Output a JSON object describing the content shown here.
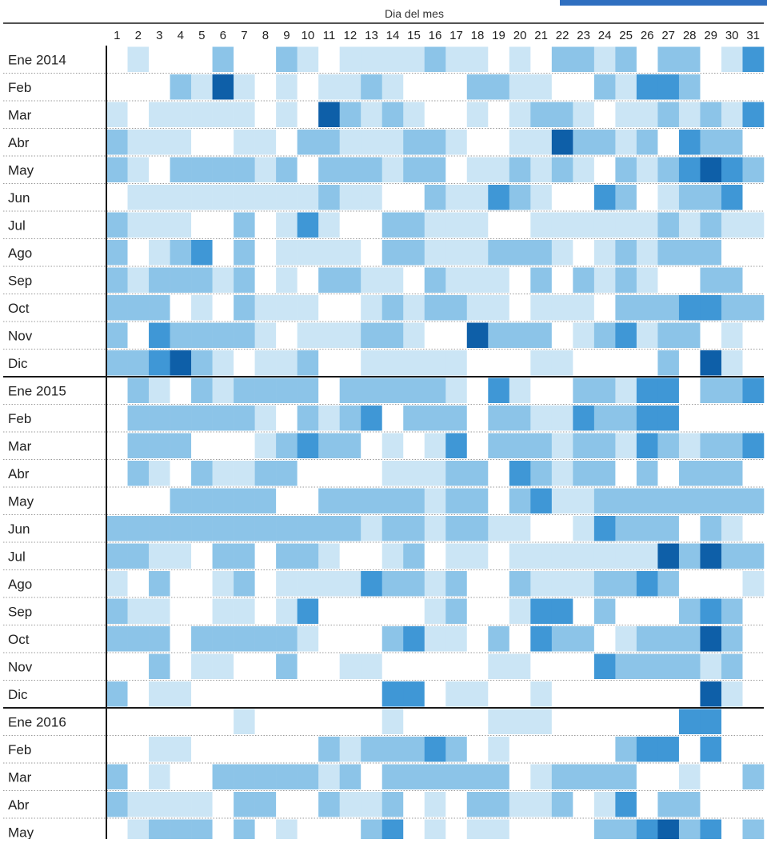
{
  "chart_data": {
    "type": "heatmap",
    "xlabel": "Dia del mes",
    "ylabel": "",
    "x": [
      "1",
      "2",
      "3",
      "4",
      "5",
      "6",
      "7",
      "8",
      "9",
      "10",
      "11",
      "12",
      "13",
      "14",
      "15",
      "16",
      "17",
      "18",
      "19",
      "20",
      "21",
      "22",
      "23",
      "24",
      "25",
      "26",
      "27",
      "28",
      "29",
      "30",
      "31"
    ],
    "y": [
      "Ene 2014",
      "Feb",
      "Mar",
      "Abr",
      "May",
      "Jun",
      "Jul",
      "Ago",
      "Sep",
      "Oct",
      "Nov",
      "Dic",
      "Ene 2015",
      "Feb",
      "Mar",
      "Abr",
      "May",
      "Jun",
      "Jul",
      "Ago",
      "Sep",
      "Oct",
      "Nov",
      "Dic",
      "Ene 2016",
      "Feb",
      "Mar",
      "Abr",
      "May"
    ],
    "year_start_rows": [
      0,
      12,
      24
    ],
    "value_range": [
      0,
      4
    ],
    "values": [
      [
        0,
        1,
        0,
        0,
        0,
        2,
        0,
        0,
        2,
        1,
        0,
        1,
        1,
        1,
        1,
        2,
        1,
        1,
        0,
        1,
        0,
        2,
        2,
        1,
        2,
        0,
        2,
        2,
        0,
        1,
        3
      ],
      [
        0,
        0,
        0,
        2,
        1,
        4,
        1,
        0,
        1,
        0,
        1,
        1,
        2,
        1,
        0,
        0,
        0,
        2,
        2,
        1,
        1,
        0,
        0,
        2,
        1,
        3,
        3,
        2,
        0,
        0,
        0
      ],
      [
        1,
        0,
        1,
        1,
        1,
        1,
        1,
        0,
        1,
        0,
        4,
        2,
        1,
        2,
        1,
        0,
        0,
        1,
        0,
        1,
        2,
        2,
        1,
        0,
        1,
        1,
        2,
        1,
        2,
        1,
        3
      ],
      [
        2,
        1,
        1,
        1,
        0,
        0,
        1,
        1,
        0,
        2,
        2,
        1,
        1,
        1,
        2,
        2,
        1,
        0,
        0,
        1,
        1,
        4,
        2,
        2,
        1,
        2,
        0,
        3,
        2,
        2,
        0
      ],
      [
        2,
        1,
        0,
        2,
        2,
        2,
        2,
        1,
        2,
        0,
        2,
        2,
        2,
        1,
        2,
        2,
        0,
        1,
        1,
        2,
        1,
        2,
        1,
        0,
        2,
        1,
        2,
        3,
        4,
        3,
        2
      ],
      [
        0,
        1,
        1,
        1,
        1,
        1,
        1,
        1,
        1,
        1,
        2,
        1,
        1,
        0,
        0,
        2,
        1,
        1,
        3,
        2,
        1,
        0,
        0,
        3,
        2,
        0,
        1,
        2,
        2,
        3,
        0
      ],
      [
        2,
        1,
        1,
        1,
        0,
        0,
        2,
        0,
        1,
        3,
        1,
        0,
        0,
        2,
        2,
        1,
        1,
        1,
        0,
        0,
        1,
        1,
        1,
        1,
        1,
        1,
        2,
        1,
        2,
        1,
        1
      ],
      [
        2,
        0,
        1,
        2,
        3,
        0,
        2,
        0,
        1,
        1,
        1,
        1,
        0,
        2,
        2,
        1,
        1,
        1,
        2,
        2,
        2,
        1,
        0,
        1,
        2,
        1,
        2,
        2,
        2,
        0,
        0
      ],
      [
        2,
        1,
        2,
        2,
        2,
        1,
        2,
        0,
        1,
        0,
        2,
        2,
        1,
        1,
        0,
        2,
        1,
        1,
        1,
        0,
        2,
        0,
        2,
        1,
        2,
        1,
        0,
        0,
        2,
        2,
        0
      ],
      [
        2,
        2,
        2,
        0,
        1,
        0,
        2,
        1,
        1,
        1,
        0,
        0,
        1,
        2,
        1,
        2,
        2,
        1,
        1,
        0,
        1,
        1,
        1,
        0,
        2,
        2,
        2,
        3,
        3,
        2,
        2
      ],
      [
        2,
        0,
        3,
        2,
        2,
        2,
        2,
        1,
        0,
        1,
        1,
        1,
        2,
        2,
        1,
        0,
        0,
        4,
        2,
        2,
        2,
        0,
        1,
        2,
        3,
        1,
        2,
        2,
        0,
        1,
        0
      ],
      [
        2,
        2,
        3,
        4,
        2,
        1,
        0,
        1,
        1,
        2,
        0,
        0,
        1,
        1,
        1,
        1,
        1,
        0,
        0,
        0,
        1,
        1,
        0,
        0,
        0,
        0,
        2,
        0,
        4,
        1,
        0
      ],
      [
        0,
        2,
        1,
        0,
        2,
        1,
        2,
        2,
        2,
        2,
        0,
        2,
        2,
        2,
        2,
        2,
        1,
        0,
        3,
        1,
        0,
        0,
        2,
        2,
        1,
        3,
        3,
        0,
        2,
        2,
        3
      ],
      [
        0,
        2,
        2,
        2,
        2,
        2,
        2,
        1,
        0,
        2,
        1,
        2,
        3,
        0,
        2,
        2,
        2,
        0,
        2,
        2,
        1,
        1,
        3,
        2,
        2,
        3,
        3,
        0,
        0,
        0,
        0
      ],
      [
        0,
        2,
        2,
        2,
        0,
        0,
        0,
        1,
        2,
        3,
        2,
        2,
        0,
        1,
        0,
        1,
        3,
        0,
        2,
        2,
        2,
        1,
        2,
        2,
        1,
        3,
        2,
        1,
        2,
        2,
        3
      ],
      [
        0,
        2,
        1,
        0,
        2,
        1,
        1,
        2,
        2,
        0,
        0,
        0,
        0,
        1,
        1,
        1,
        2,
        2,
        0,
        3,
        2,
        1,
        2,
        2,
        0,
        2,
        0,
        2,
        2,
        2,
        0
      ],
      [
        0,
        0,
        0,
        2,
        2,
        2,
        2,
        2,
        0,
        0,
        2,
        2,
        2,
        2,
        2,
        1,
        2,
        2,
        0,
        2,
        3,
        1,
        1,
        2,
        2,
        2,
        2,
        2,
        2,
        2,
        2
      ],
      [
        2,
        2,
        2,
        2,
        2,
        2,
        2,
        2,
        2,
        2,
        2,
        2,
        1,
        2,
        2,
        1,
        2,
        2,
        1,
        1,
        0,
        0,
        1,
        3,
        2,
        2,
        2,
        0,
        2,
        1,
        0
      ],
      [
        2,
        2,
        1,
        1,
        0,
        2,
        2,
        0,
        2,
        2,
        1,
        0,
        0,
        1,
        2,
        0,
        1,
        1,
        0,
        1,
        1,
        1,
        1,
        1,
        1,
        1,
        4,
        2,
        4,
        2,
        2
      ],
      [
        1,
        0,
        2,
        0,
        0,
        1,
        2,
        0,
        1,
        1,
        1,
        1,
        3,
        2,
        2,
        1,
        2,
        0,
        0,
        2,
        1,
        1,
        1,
        2,
        2,
        3,
        2,
        0,
        0,
        0,
        1
      ],
      [
        2,
        1,
        1,
        0,
        0,
        1,
        1,
        0,
        1,
        3,
        0,
        0,
        0,
        0,
        0,
        1,
        2,
        0,
        0,
        1,
        3,
        3,
        0,
        2,
        0,
        0,
        0,
        2,
        3,
        2,
        0
      ],
      [
        2,
        2,
        2,
        0,
        2,
        2,
        2,
        2,
        2,
        1,
        0,
        0,
        0,
        2,
        3,
        1,
        1,
        0,
        2,
        0,
        3,
        2,
        2,
        0,
        1,
        2,
        2,
        2,
        4,
        2,
        0
      ],
      [
        0,
        0,
        2,
        0,
        1,
        1,
        0,
        0,
        2,
        0,
        0,
        1,
        1,
        0,
        0,
        0,
        0,
        0,
        1,
        1,
        0,
        0,
        0,
        3,
        2,
        2,
        2,
        2,
        1,
        2,
        0
      ],
      [
        2,
        0,
        1,
        1,
        0,
        0,
        0,
        0,
        0,
        0,
        0,
        0,
        0,
        3,
        3,
        0,
        1,
        1,
        0,
        0,
        1,
        0,
        0,
        0,
        0,
        0,
        0,
        0,
        4,
        1,
        0
      ],
      [
        0,
        0,
        0,
        0,
        0,
        0,
        1,
        0,
        0,
        0,
        0,
        0,
        0,
        1,
        0,
        0,
        0,
        0,
        1,
        1,
        1,
        0,
        0,
        0,
        0,
        0,
        0,
        3,
        3,
        0,
        0
      ],
      [
        0,
        0,
        1,
        1,
        0,
        0,
        0,
        0,
        0,
        0,
        2,
        1,
        2,
        2,
        2,
        3,
        2,
        0,
        1,
        0,
        0,
        0,
        0,
        0,
        2,
        3,
        3,
        0,
        3,
        0,
        0
      ],
      [
        2,
        0,
        1,
        0,
        0,
        2,
        2,
        2,
        2,
        2,
        1,
        2,
        0,
        2,
        2,
        2,
        2,
        2,
        2,
        0,
        1,
        2,
        2,
        2,
        2,
        0,
        0,
        1,
        0,
        0,
        2
      ],
      [
        2,
        1,
        1,
        1,
        1,
        0,
        2,
        2,
        0,
        0,
        2,
        1,
        1,
        2,
        0,
        1,
        0,
        2,
        2,
        1,
        1,
        2,
        0,
        1,
        3,
        0,
        2,
        2,
        0,
        0,
        0
      ],
      [
        0,
        1,
        2,
        2,
        2,
        0,
        2,
        0,
        1,
        0,
        0,
        0,
        2,
        3,
        0,
        1,
        0,
        1,
        1,
        0,
        0,
        0,
        0,
        2,
        2,
        3,
        4,
        2,
        3,
        0,
        2
      ]
    ],
    "color_scale": [
      "#ffffff",
      "#cbe5f5",
      "#8cc4e8",
      "#3f97d6",
      "#0e5fa8"
    ],
    "grid": true,
    "legend": "none"
  }
}
